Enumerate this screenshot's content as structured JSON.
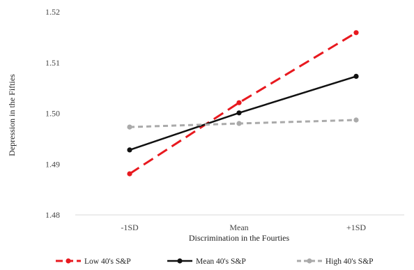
{
  "chart_data": {
    "type": "line",
    "title": "",
    "xlabel": "Discrimination in the Fourties",
    "ylabel": "Depression in the Fifties",
    "categories": [
      "-1SD",
      "Mean",
      "+1SD"
    ],
    "ylim": [
      1.48,
      1.52
    ],
    "yticks": [
      "1.48",
      "1.49",
      "1.50",
      "1.51",
      "1.52"
    ],
    "ytick_values": [
      1.48,
      1.49,
      1.5,
      1.51,
      1.52
    ],
    "grid": false,
    "legend_position": "bottom",
    "series": [
      {
        "name": "Low 40's S&P",
        "values": [
          1.4881,
          1.5021,
          1.5159
        ],
        "color": "#e8191f",
        "dash": "long-dash"
      },
      {
        "name": "Mean 40's S&P",
        "values": [
          1.4928,
          1.5001,
          1.5073
        ],
        "color": "#111111",
        "dash": "solid"
      },
      {
        "name": "High 40's S&P",
        "values": [
          1.4973,
          1.498,
          1.4987
        ],
        "color": "#aaaaaa",
        "dash": "short-dash"
      }
    ]
  }
}
